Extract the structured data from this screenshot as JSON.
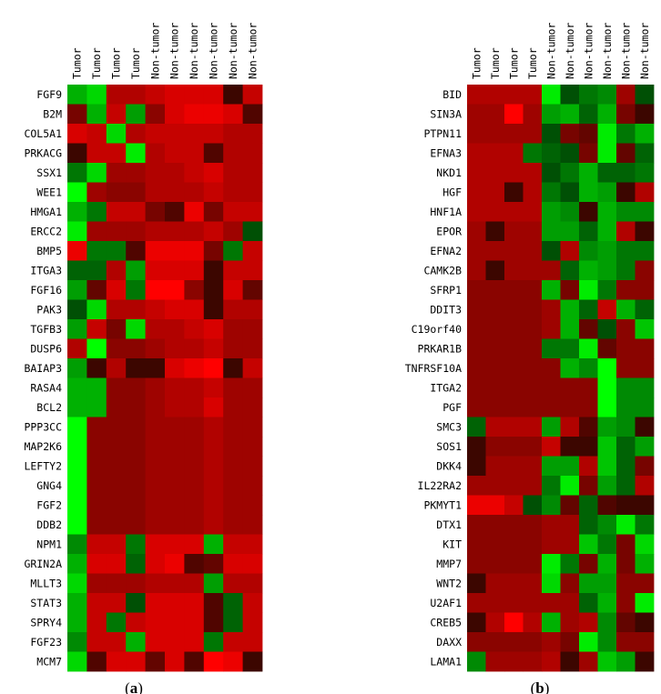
{
  "chart_data": [
    {
      "type": "heatmap",
      "panel": "a",
      "caption_letter": "a",
      "columns": [
        "Tumor",
        "Tumor",
        "Tumor",
        "Tumor",
        "Non-tumor",
        "Non-tumor",
        "Non-tumor",
        "Non-tumor",
        "Non-tumor",
        "Non-tumor"
      ],
      "rows": [
        "FGF9",
        "B2M",
        "COL5A1",
        "PRKACG",
        "SSX1",
        "WEE1",
        "HMGA1",
        "ERCC2",
        "BMP5",
        "ITGA3",
        "FGF16",
        "PAK3",
        "TGFB3",
        "DUSP6",
        "BAIAP3",
        "RASA4",
        "BCL2",
        "PPP3CC",
        "MAP2K6",
        "LEFTY2",
        "GNG4",
        "FGF2",
        "DDB2",
        "NPM1",
        "GRIN2A",
        "MLLT3",
        "STAT3",
        "SPRY4",
        "FGF23",
        "MCM7"
      ],
      "value_scale": "signed intensity: positive = red (higher expression), negative = green (lower expression), 0 = black",
      "values": [
        [
          -0.6,
          -0.8,
          0.6,
          0.6,
          0.7,
          0.8,
          0.8,
          0.8,
          0.0,
          0.7
        ],
        [
          0.3,
          -0.6,
          0.7,
          -0.5,
          0.4,
          0.8,
          0.9,
          0.9,
          0.8,
          0.1
        ],
        [
          0.8,
          0.7,
          -0.8,
          0.6,
          0.7,
          0.7,
          0.7,
          0.7,
          0.6,
          0.6
        ],
        [
          0.0,
          0.7,
          0.7,
          -0.9,
          0.6,
          0.7,
          0.7,
          0.1,
          0.6,
          0.6
        ],
        [
          -0.3,
          -0.8,
          0.5,
          0.5,
          0.6,
          0.6,
          0.7,
          0.8,
          0.6,
          0.6
        ],
        [
          -1.0,
          0.5,
          0.4,
          0.4,
          0.6,
          0.6,
          0.6,
          0.7,
          0.6,
          0.6
        ],
        [
          -0.6,
          -0.3,
          0.7,
          0.7,
          0.3,
          0.1,
          0.9,
          0.3,
          0.7,
          0.7
        ],
        [
          -0.9,
          0.5,
          0.5,
          0.5,
          0.6,
          0.6,
          0.6,
          0.7,
          0.5,
          -0.1
        ],
        [
          0.9,
          -0.3,
          -0.3,
          0.1,
          0.9,
          0.9,
          0.9,
          0.3,
          -0.3,
          0.7
        ],
        [
          -0.2,
          -0.2,
          0.6,
          -0.5,
          0.8,
          0.8,
          0.8,
          0.0,
          0.7,
          0.7
        ],
        [
          -0.5,
          0.2,
          0.8,
          -0.3,
          1.0,
          1.0,
          0.4,
          0.0,
          0.8,
          0.2
        ],
        [
          -0.1,
          -0.8,
          0.6,
          0.6,
          0.7,
          0.8,
          0.8,
          0.0,
          0.6,
          0.6
        ],
        [
          -0.5,
          0.7,
          0.3,
          -0.8,
          0.6,
          0.6,
          0.7,
          0.8,
          0.5,
          0.5
        ],
        [
          0.6,
          -1.0,
          0.4,
          0.4,
          0.5,
          0.6,
          0.6,
          0.7,
          0.5,
          0.5
        ],
        [
          -0.5,
          0.0,
          0.6,
          0.0,
          0.0,
          0.8,
          0.9,
          1.0,
          0.0,
          0.7
        ],
        [
          -0.6,
          -0.6,
          0.4,
          0.4,
          0.5,
          0.6,
          0.6,
          0.7,
          0.5,
          0.5
        ],
        [
          -0.6,
          -0.6,
          0.4,
          0.4,
          0.5,
          0.6,
          0.6,
          0.8,
          0.5,
          0.5
        ],
        [
          -1.0,
          0.4,
          0.4,
          0.4,
          0.5,
          0.5,
          0.5,
          0.6,
          0.5,
          0.5
        ],
        [
          -1.0,
          0.4,
          0.4,
          0.4,
          0.5,
          0.5,
          0.5,
          0.6,
          0.5,
          0.5
        ],
        [
          -1.0,
          0.4,
          0.4,
          0.4,
          0.5,
          0.5,
          0.5,
          0.6,
          0.5,
          0.5
        ],
        [
          -1.0,
          0.4,
          0.4,
          0.4,
          0.5,
          0.5,
          0.5,
          0.6,
          0.5,
          0.5
        ],
        [
          -1.0,
          0.4,
          0.4,
          0.4,
          0.5,
          0.5,
          0.5,
          0.6,
          0.5,
          0.5
        ],
        [
          -1.0,
          0.4,
          0.4,
          0.4,
          0.5,
          0.5,
          0.5,
          0.6,
          0.5,
          0.5
        ],
        [
          -0.4,
          0.7,
          0.7,
          -0.3,
          0.8,
          0.8,
          0.8,
          -0.6,
          0.7,
          0.7
        ],
        [
          -0.6,
          0.8,
          0.8,
          -0.2,
          0.8,
          0.9,
          0.1,
          0.2,
          0.8,
          0.8
        ],
        [
          -0.8,
          0.5,
          0.5,
          0.5,
          0.6,
          0.6,
          0.6,
          -0.5,
          0.6,
          0.6
        ],
        [
          -0.6,
          0.7,
          0.7,
          -0.1,
          0.8,
          0.8,
          0.8,
          0.1,
          -0.2,
          0.7
        ],
        [
          -0.6,
          0.7,
          -0.3,
          0.7,
          0.8,
          0.8,
          0.8,
          0.1,
          -0.2,
          0.7
        ],
        [
          -0.4,
          0.7,
          0.7,
          -0.6,
          0.8,
          0.8,
          0.8,
          -0.3,
          0.7,
          0.7
        ],
        [
          -0.8,
          0.1,
          0.8,
          0.8,
          0.2,
          0.8,
          0.1,
          1.0,
          0.9,
          0.0
        ]
      ]
    },
    {
      "type": "heatmap",
      "panel": "b",
      "caption_letter": "b",
      "columns": [
        "Tumor",
        "Tumor",
        "Tumor",
        "Tumor",
        "Non-tumor",
        "Non-tumor",
        "Non-tumor",
        "Non-tumor",
        "Non-tumor",
        "Non-tumor"
      ],
      "rows": [
        "BID",
        "SIN3A",
        "PTPN11",
        "EFNA3",
        "NKD1",
        "HGF",
        "HNF1A",
        "EPOR",
        "EFNA2",
        "CAMK2B",
        "SFRP1",
        "DDIT3",
        "C19orf40",
        "PRKAR1B",
        "TNFRSF10A",
        "ITGA2",
        "PGF",
        "SMC3",
        "SOS1",
        "DKK4",
        "IL22RA2",
        "PKMYT1",
        "DTX1",
        "KIT",
        "MMP7",
        "WNT2",
        "U2AF1",
        "CREB5",
        "DAXX",
        "LAMA1"
      ],
      "value_scale": "signed intensity: positive = red (higher expression), negative = green (lower expression), 0 = black",
      "values": [
        [
          0.6,
          0.6,
          0.6,
          0.6,
          -0.9,
          -0.1,
          -0.3,
          -0.4,
          0.5,
          -0.1
        ],
        [
          0.5,
          0.5,
          1.0,
          0.5,
          -0.5,
          -0.6,
          -0.2,
          -0.6,
          0.3,
          0.0
        ],
        [
          0.5,
          0.5,
          0.5,
          0.5,
          -0.1,
          0.3,
          0.2,
          -0.9,
          -0.3,
          -0.6
        ],
        [
          0.6,
          0.6,
          0.6,
          -0.3,
          -0.2,
          -0.1,
          0.3,
          -0.9,
          0.2,
          -0.2
        ],
        [
          0.6,
          0.6,
          0.6,
          0.6,
          -0.1,
          -0.3,
          -0.6,
          -0.2,
          -0.2,
          -0.3
        ],
        [
          0.6,
          0.6,
          0.0,
          0.6,
          -0.3,
          -0.1,
          -0.6,
          -0.5,
          0.0,
          0.6
        ],
        [
          0.6,
          0.6,
          0.6,
          0.6,
          -0.5,
          -0.4,
          0.0,
          -0.6,
          -0.4,
          -0.4
        ],
        [
          0.5,
          0.0,
          0.5,
          0.5,
          -0.5,
          -0.5,
          -0.2,
          -0.6,
          0.6,
          0.0
        ],
        [
          0.5,
          0.5,
          0.5,
          0.5,
          -0.1,
          0.6,
          -0.4,
          -0.5,
          -0.3,
          -0.3
        ],
        [
          0.5,
          0.0,
          0.5,
          0.5,
          0.5,
          -0.2,
          -0.6,
          -0.5,
          -0.3,
          0.4
        ],
        [
          0.4,
          0.4,
          0.4,
          0.4,
          -0.6,
          0.3,
          -0.9,
          -0.3,
          0.4,
          0.4
        ],
        [
          0.4,
          0.4,
          0.4,
          0.4,
          0.5,
          -0.6,
          -0.2,
          0.7,
          -0.6,
          -0.2
        ],
        [
          0.4,
          0.4,
          0.4,
          0.4,
          0.5,
          -0.6,
          0.2,
          -0.1,
          0.4,
          -0.7
        ],
        [
          0.4,
          0.4,
          0.4,
          0.4,
          -0.3,
          -0.3,
          -0.9,
          0.2,
          0.4,
          0.4
        ],
        [
          0.4,
          0.4,
          0.4,
          0.4,
          0.4,
          -0.6,
          -0.4,
          -1.0,
          0.4,
          0.4
        ],
        [
          0.4,
          0.4,
          0.4,
          0.4,
          0.4,
          0.4,
          0.4,
          -1.0,
          -0.4,
          -0.4
        ],
        [
          0.4,
          0.4,
          0.4,
          0.4,
          0.4,
          0.4,
          0.4,
          -1.0,
          -0.4,
          -0.4
        ],
        [
          -0.2,
          0.6,
          0.6,
          0.6,
          -0.5,
          0.6,
          0.1,
          -0.5,
          -0.4,
          0.0
        ],
        [
          0.0,
          0.4,
          0.4,
          0.4,
          0.7,
          0.0,
          0.0,
          -0.7,
          -0.2,
          -0.5
        ],
        [
          0.0,
          0.5,
          0.5,
          0.5,
          -0.5,
          -0.5,
          0.6,
          -0.7,
          -0.2,
          0.3
        ],
        [
          0.5,
          0.5,
          0.5,
          0.5,
          -0.3,
          -0.9,
          0.3,
          -0.5,
          -0.2,
          0.6
        ],
        [
          0.9,
          0.9,
          0.7,
          -0.1,
          -0.4,
          0.2,
          -0.2,
          0.1,
          0.0,
          0.0
        ],
        [
          0.4,
          0.4,
          0.4,
          0.4,
          0.5,
          0.5,
          -0.2,
          -0.4,
          -0.9,
          -0.3
        ],
        [
          0.4,
          0.4,
          0.4,
          0.4,
          0.5,
          0.5,
          -0.7,
          -0.3,
          0.3,
          -0.8
        ],
        [
          0.4,
          0.4,
          0.4,
          0.4,
          -0.9,
          -0.3,
          0.3,
          -0.6,
          0.3,
          -0.6
        ],
        [
          0.0,
          0.5,
          0.5,
          0.5,
          -0.8,
          0.4,
          -0.5,
          -0.5,
          0.4,
          0.4
        ],
        [
          0.5,
          0.5,
          0.5,
          0.5,
          0.5,
          0.5,
          -0.2,
          -0.6,
          0.4,
          -0.9
        ],
        [
          0.0,
          0.6,
          1.0,
          0.6,
          -0.6,
          0.5,
          0.6,
          -0.4,
          0.2,
          0.0
        ],
        [
          0.4,
          0.4,
          0.4,
          0.4,
          0.5,
          0.3,
          -0.9,
          -0.4,
          0.4,
          0.4
        ],
        [
          -0.4,
          0.5,
          0.5,
          0.5,
          0.6,
          0.0,
          0.5,
          -0.7,
          -0.5,
          0.0
        ]
      ]
    }
  ]
}
